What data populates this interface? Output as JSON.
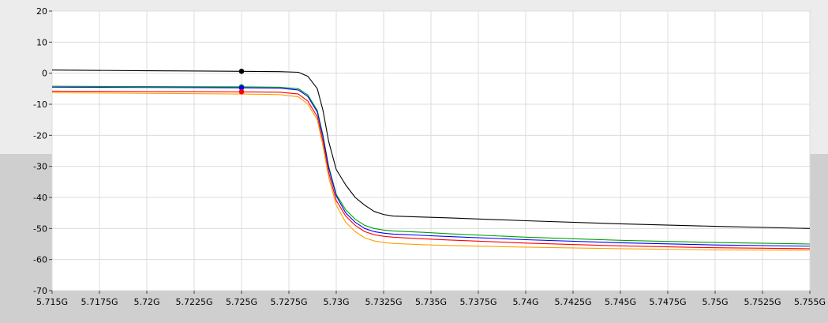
{
  "chart_data": {
    "type": "line",
    "title": "",
    "xlabel": "",
    "ylabel": "",
    "xlim": [
      5.715,
      5.755
    ],
    "ylim": [
      -70,
      20
    ],
    "grid": true,
    "x_ticks": [
      5.715,
      5.7175,
      5.72,
      5.7225,
      5.725,
      5.7275,
      5.73,
      5.7325,
      5.735,
      5.7375,
      5.74,
      5.7425,
      5.745,
      5.7475,
      5.75,
      5.7525,
      5.755
    ],
    "x_tick_labels": [
      "5.715G",
      "5.7175G",
      "5.72G",
      "5.7225G",
      "5.725G",
      "5.7275G",
      "5.73G",
      "5.7325G",
      "5.735G",
      "5.7375G",
      "5.74G",
      "5.7425G",
      "5.745G",
      "5.7475G",
      "5.75G",
      "5.7525G",
      "5.755G"
    ],
    "y_ticks": [
      20,
      10,
      0,
      -10,
      -20,
      -30,
      -40,
      -50,
      -60,
      -70
    ],
    "y_tick_labels": [
      "20",
      "10",
      "0",
      "-10",
      "-20",
      "-30",
      "-40",
      "-50",
      "-60",
      "-70"
    ],
    "x": [
      5.715,
      5.72,
      5.725,
      5.727,
      5.728,
      5.7285,
      5.729,
      5.7293,
      5.7296,
      5.73,
      5.7305,
      5.731,
      5.7315,
      5.732,
      5.7325,
      5.733,
      5.7345,
      5.736,
      5.74,
      5.745,
      5.75,
      5.755
    ],
    "series": [
      {
        "color": "#000000",
        "values": [
          1,
          0.8,
          0.6,
          0.5,
          0.3,
          -1,
          -5,
          -12,
          -22,
          -31,
          -36,
          -40,
          -42.5,
          -44.5,
          -45.5,
          -46,
          -46.3,
          -46.6,
          -47.5,
          -48.5,
          -49.3,
          -50
        ]
      },
      {
        "color": "#00a000",
        "values": [
          -4.2,
          -4.3,
          -4.4,
          -4.5,
          -5,
          -7,
          -12,
          -20,
          -30,
          -39,
          -44,
          -47,
          -49,
          -50,
          -50.5,
          -50.8,
          -51.2,
          -51.7,
          -52.8,
          -53.8,
          -54.5,
          -55
        ]
      },
      {
        "color": "#0000ff",
        "values": [
          -4.5,
          -4.6,
          -4.7,
          -4.8,
          -5.4,
          -7.5,
          -12.5,
          -20.5,
          -30.5,
          -39.5,
          -45,
          -48,
          -50,
          -51,
          -51.5,
          -51.8,
          -52.2,
          -52.6,
          -53.6,
          -54.6,
          -55.3,
          -55.7
        ]
      },
      {
        "color": "#ff0000",
        "values": [
          -5.8,
          -5.9,
          -6,
          -6.1,
          -6.7,
          -9,
          -14,
          -22,
          -32,
          -41,
          -46,
          -49,
          -51,
          -52,
          -52.5,
          -52.8,
          -53.3,
          -53.7,
          -54.7,
          -55.6,
          -56.2,
          -56.5
        ]
      },
      {
        "color": "#ffa000",
        "values": [
          -6.3,
          -6.5,
          -6.7,
          -6.9,
          -7.6,
          -10,
          -15,
          -23.5,
          -33.5,
          -42.5,
          -48,
          -51,
          -53,
          -54,
          -54.5,
          -54.8,
          -55.2,
          -55.5,
          -56,
          -56.5,
          -56.9,
          -57
        ]
      }
    ],
    "markers": [
      {
        "x": 5.725,
        "y": 0.6,
        "color": "#000000"
      },
      {
        "x": 5.725,
        "y": -4.4,
        "color": "#00a000"
      },
      {
        "x": 5.725,
        "y": -4.7,
        "color": "#0000ff"
      },
      {
        "x": 5.725,
        "y": -6.0,
        "color": "#ff0000"
      }
    ]
  }
}
